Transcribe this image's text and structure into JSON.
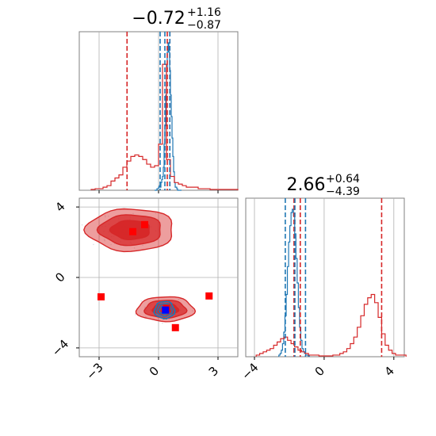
{
  "chart_data": {
    "type": "corner",
    "colors": {
      "red": "#d62728",
      "blue": "#1f77b4",
      "marker_red": "#ff0000",
      "marker_blue": "#0000ff",
      "grid": "#b0b0b0"
    },
    "panels": [
      {
        "id": "param1-hist",
        "type": "histogram",
        "title": {
          "value": "−0.72",
          "plus": "+1.16",
          "minus": "−0.87"
        },
        "xlim": [
          -4,
          4
        ],
        "x_ticks": [
          -3,
          0,
          3
        ],
        "grid": true,
        "vlines": [
          {
            "series": "red",
            "x": -1.59
          },
          {
            "series": "red",
            "x": 0.44
          },
          {
            "series": "red",
            "x": 0.57
          },
          {
            "series": "blue",
            "x": 0.08
          },
          {
            "series": "blue",
            "x": 0.32
          },
          {
            "series": "blue",
            "x": 0.57
          }
        ],
        "series": [
          {
            "key": "blue",
            "edges_start": -0.2,
            "bin_width": 0.04,
            "values": [
              0,
              0,
              0,
              0.01,
              0.01,
              0.02,
              0.03,
              0.02,
              0.05,
              0.07,
              0.09,
              0.15,
              0.3,
              0.42,
              0.62,
              0.78,
              0.9,
              0.96,
              0.9,
              0.78,
              0.62,
              0.48,
              0.34,
              0.22,
              0.12,
              0.05,
              0.02,
              0.02,
              0.01,
              0,
              0,
              0,
              0,
              0
            ]
          },
          {
            "key": "red",
            "edges_start": -3.4,
            "bin_width": 0.2,
            "values": [
              0.005,
              0.01,
              0.01,
              0.02,
              0.03,
              0.06,
              0.08,
              0.1,
              0.15,
              0.19,
              0.22,
              0.23,
              0.22,
              0.2,
              0.17,
              0.15,
              0.16,
              0.3,
              0.82,
              0.2,
              0.09,
              0.05,
              0.04,
              0.03,
              0.02,
              0.02,
              0.02,
              0.01,
              0.01,
              0.01,
              0.005,
              0.005,
              0.005,
              0.005,
              0.005,
              0.005,
              0.005
            ]
          }
        ]
      },
      {
        "id": "param2-hist",
        "type": "histogram",
        "title": {
          "value": "2.66",
          "plus": "+0.64",
          "minus": "−4.39"
        },
        "xlim": [
          -4.5,
          4.6
        ],
        "x_ticks": [
          -4,
          0,
          4
        ],
        "grid": true,
        "vlines": [
          {
            "series": "red",
            "x": -1.73
          },
          {
            "series": "red",
            "x": -1.37
          },
          {
            "series": "red",
            "x": 3.3
          },
          {
            "series": "blue",
            "x": -2.23
          },
          {
            "series": "blue",
            "x": -1.68
          },
          {
            "series": "blue",
            "x": -1.07
          }
        ],
        "series": [
          {
            "key": "blue",
            "edges_start": -2.6,
            "bin_width": 0.07,
            "values": [
              0.01,
              0.02,
              0.04,
              0.08,
              0.15,
              0.25,
              0.38,
              0.55,
              0.7,
              0.8,
              0.88,
              0.9,
              0.86,
              0.75,
              0.6,
              0.45,
              0.3,
              0.18,
              0.1,
              0.05,
              0.03,
              0.02,
              0.01,
              0.01,
              0.005
            ]
          },
          {
            "key": "red",
            "edges_start": -3.9,
            "bin_width": 0.2,
            "values": [
              0.01,
              0.02,
              0.03,
              0.04,
              0.05,
              0.07,
              0.09,
              0.11,
              0.12,
              0.1,
              0.08,
              0.06,
              0.04,
              0.03,
              0.02,
              0.01,
              0.01,
              0.01,
              0.005,
              0.005,
              0.005,
              0.005,
              0.01,
              0.01,
              0.02,
              0.03,
              0.05,
              0.08,
              0.12,
              0.18,
              0.25,
              0.32,
              0.36,
              0.38,
              0.33,
              0.24,
              0.14,
              0.07,
              0.04,
              0.02,
              0.01,
              0.01,
              0.01
            ]
          }
        ]
      },
      {
        "id": "param1-param2-joint",
        "type": "contour",
        "xlim": [
          -4,
          4
        ],
        "ylim": [
          -4.5,
          4.5
        ],
        "x_ticks": [
          -3,
          0,
          3
        ],
        "y_ticks": [
          -4,
          0,
          4
        ],
        "grid": true,
        "red_modes": [
          {
            "cx": -1.4,
            "cy": 2.7,
            "rx": 2.2,
            "ry": 1.2
          },
          {
            "cx": 0.35,
            "cy": -1.8,
            "rx": 1.45,
            "ry": 0.7
          }
        ],
        "blue_modes": [
          {
            "cx": 0.3,
            "cy": -1.85,
            "rx": 0.5,
            "ry": 0.48
          }
        ],
        "markers": [
          {
            "color": "red",
            "x": -1.3,
            "y": 2.6
          },
          {
            "color": "red",
            "x": -0.7,
            "y": 3.0
          },
          {
            "color": "red",
            "x": -2.9,
            "y": -1.1
          },
          {
            "color": "red",
            "x": 2.55,
            "y": -1.05
          },
          {
            "color": "red",
            "x": 0.85,
            "y": -2.85
          },
          {
            "color": "red",
            "x": 0.4,
            "y": -1.75
          },
          {
            "color": "blue",
            "x": 0.35,
            "y": -1.85
          }
        ]
      }
    ]
  }
}
